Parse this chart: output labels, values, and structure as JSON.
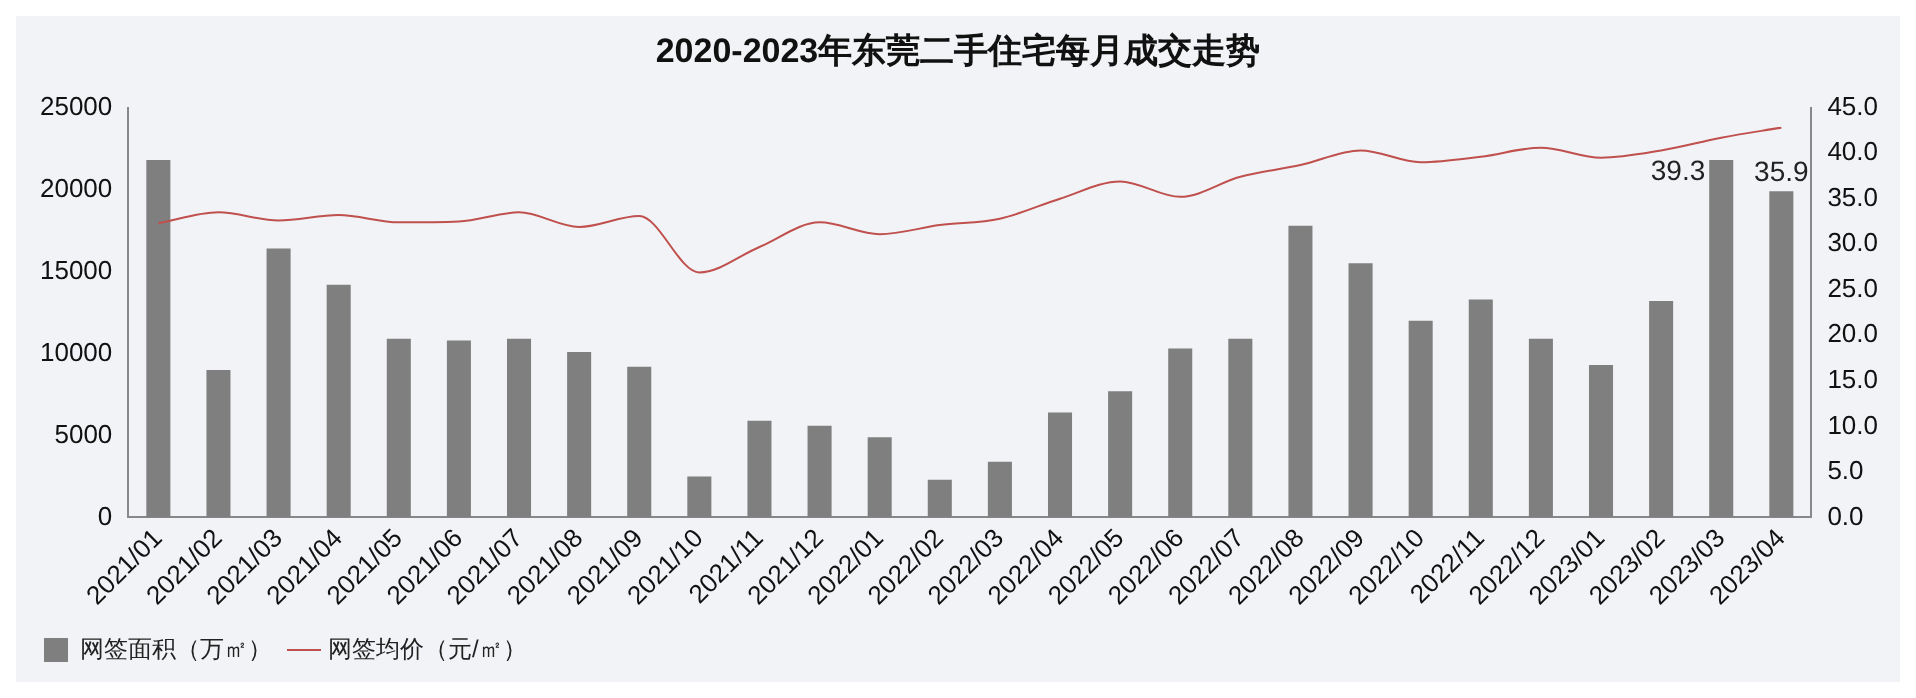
{
  "chart_data": {
    "type": "bar",
    "title": "2020-2023年东莞二手住宅每月成交走势",
    "categories": [
      "2021/01",
      "2021/02",
      "2021/03",
      "2021/04",
      "2021/05",
      "2021/06",
      "2021/07",
      "2021/08",
      "2021/09",
      "2021/10",
      "2021/11",
      "2021/12",
      "2022/01",
      "2022/02",
      "2022/03",
      "2022/04",
      "2022/05",
      "2022/06",
      "2022/07",
      "2022/08",
      "2022/09",
      "2022/10",
      "2022/11",
      "2022/12",
      "2023/01",
      "2023/02",
      "2023/03",
      "2023/04"
    ],
    "series": [
      {
        "name": "网签面积（万㎡）",
        "color": "#7f7f7f",
        "values": [
          21800,
          9000,
          16400,
          14200,
          10900,
          10800,
          10900,
          10100,
          9200,
          2500,
          5900,
          5600,
          4900,
          2300,
          3400,
          6400,
          7700,
          10300,
          10900,
          17800,
          15500,
          12000,
          13300,
          10900,
          9300,
          13200,
          21800,
          19900
        ]
      },
      {
        "name": "网签均价（元/㎡）",
        "type": "line",
        "axis": "y2",
        "color": "#c0504d",
        "values": [
          32.3,
          33.5,
          32.6,
          33.2,
          32.4,
          32.5,
          33.5,
          31.9,
          33.1,
          26.9,
          29.7,
          32.4,
          31.1,
          32.1,
          32.8,
          35.0,
          36.9,
          35.2,
          37.4,
          38.7,
          40.3,
          39.0,
          39.6,
          40.6,
          39.5,
          40.3,
          41.7,
          42.8
        ]
      }
    ],
    "ylim": [
      0,
      25000
    ],
    "yticks": [
      0,
      5000,
      10000,
      15000,
      20000,
      25000
    ],
    "y2lim": [
      0,
      45
    ],
    "y2ticks": [
      {
        "value": 0,
        "label": "0.0"
      },
      {
        "value": 5,
        "label": "5.0"
      },
      {
        "value": 10,
        "label": "10.0"
      },
      {
        "value": 15,
        "label": "15.0"
      },
      {
        "value": 20,
        "label": "20.0"
      },
      {
        "value": 25,
        "label": "25.0"
      },
      {
        "value": 30,
        "label": "30.0"
      },
      {
        "value": 35,
        "label": "35.0"
      },
      {
        "value": 40,
        "label": "40.0"
      },
      {
        "value": 45,
        "label": "45.0"
      }
    ],
    "annotations": [
      {
        "text": "39.3",
        "x": "2023/03",
        "y": 21800
      },
      {
        "text": "35.9",
        "x": "2023/04",
        "y": 19900
      }
    ],
    "grid": false,
    "legend": "bottom left",
    "marker": "none",
    "line_style": "solid"
  }
}
